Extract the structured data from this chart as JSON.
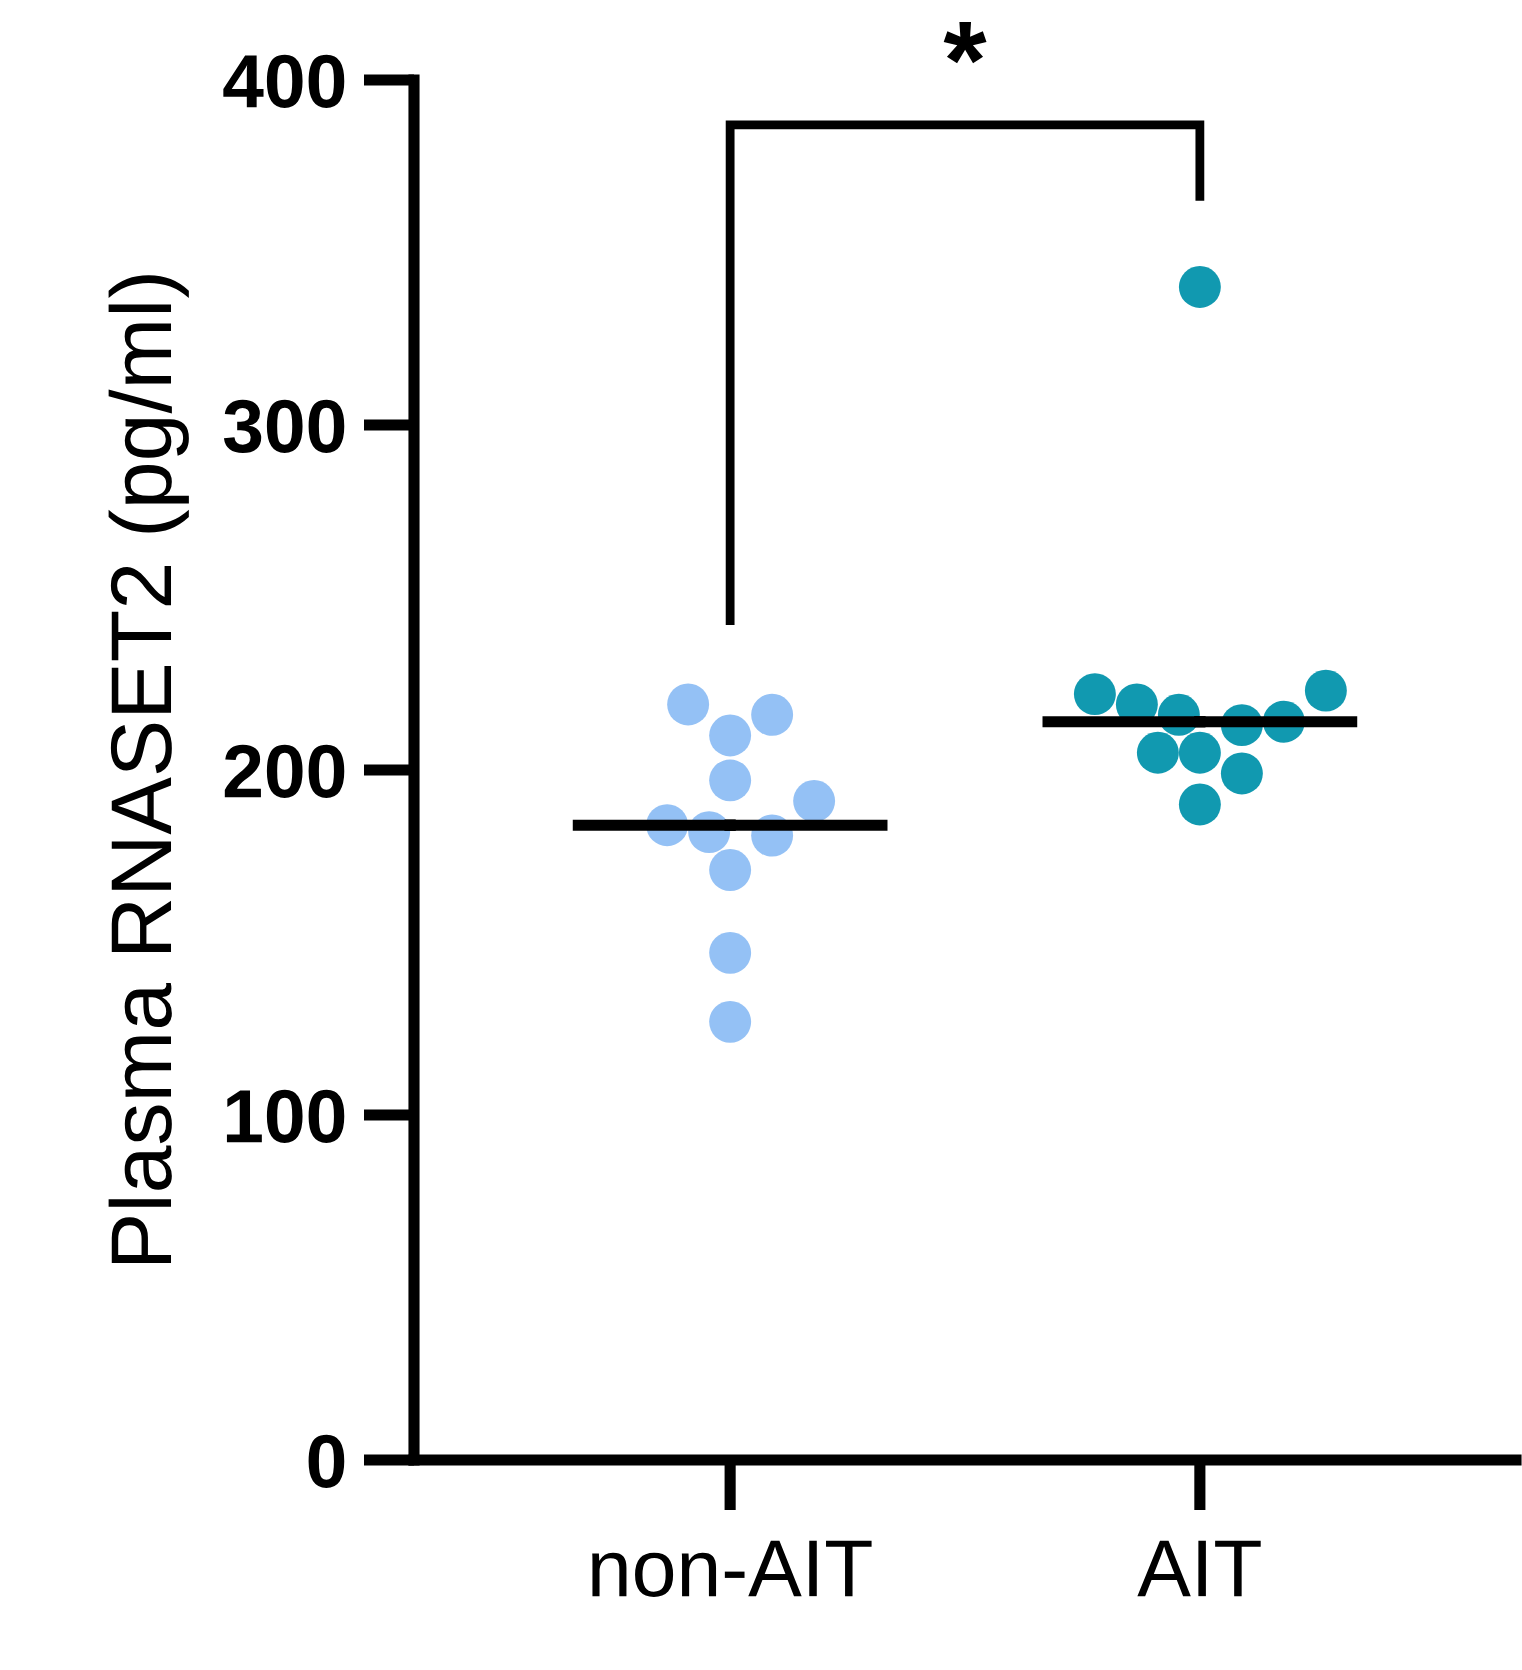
{
  "chart_data": {
    "type": "scatter",
    "ylabel": "Plasma RNASET2 (pg/ml)",
    "categories": [
      "non-AIT",
      "AIT"
    ],
    "ylim": [
      0,
      400
    ],
    "yticks": [
      0,
      100,
      200,
      300,
      400
    ],
    "grid": false,
    "legend": false,
    "marker": "circle",
    "series": [
      {
        "type": "scatter",
        "color": "#94c1f5",
        "x": [
          "non-AIT",
          "non-AIT",
          "non-AIT",
          "non-AIT",
          "non-AIT",
          "non-AIT",
          "non-AIT",
          "non-AIT",
          "non-AIT",
          "non-AIT",
          "non-AIT"
        ],
        "values": [
          181,
          210,
          191,
          171,
          147,
          127,
          216,
          182,
          219,
          197,
          184
        ]
      },
      {
        "type": "scatter",
        "color": "#1199b0",
        "x": [
          "AIT",
          "AIT",
          "AIT",
          "AIT",
          "AIT",
          "AIT",
          "AIT",
          "AIT",
          "AIT",
          "AIT",
          "AIT"
        ],
        "values": [
          216,
          222,
          205,
          214,
          190,
          213,
          199,
          223,
          205,
          219,
          340
        ]
      },
      {
        "type": "box",
        "color": "#000000",
        "boxes": [
          {
            "low": 184,
            "q1": 184,
            "median": 184,
            "q3": 184,
            "high": 184
          },
          {
            "low": 214,
            "q1": 214,
            "median": 214,
            "q3": 214,
            "high": 214
          }
        ]
      }
    ],
    "annotations": [
      "*"
    ]
  }
}
